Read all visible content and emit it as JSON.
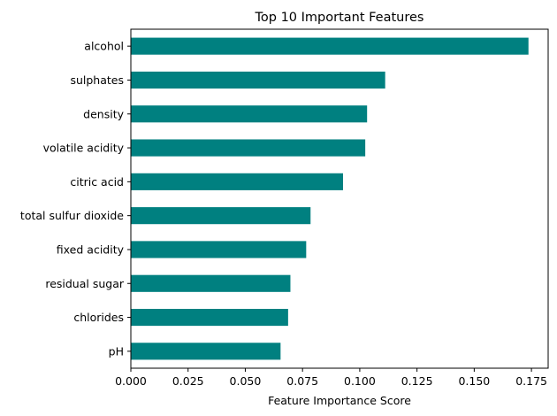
{
  "chart_data": {
    "type": "bar",
    "orientation": "horizontal",
    "title": "Top 10 Important Features",
    "xlabel": "Feature Importance Score",
    "ylabel": "",
    "xlim": [
      0,
      0.1823
    ],
    "x_ticks": [
      "0.000",
      "0.025",
      "0.050",
      "0.075",
      "0.100",
      "0.125",
      "0.150",
      "0.175"
    ],
    "x_tick_values": [
      0,
      0.025,
      0.05,
      0.075,
      0.1,
      0.125,
      0.15,
      0.175
    ],
    "categories": [
      "alcohol",
      "sulphates",
      "density",
      "volatile acidity",
      "citric acid",
      "total sulfur dioxide",
      "fixed acidity",
      "residual sugar",
      "chlorides",
      "pH"
    ],
    "values": [
      0.1737,
      0.1111,
      0.1032,
      0.1024,
      0.0927,
      0.0785,
      0.0766,
      0.0697,
      0.0687,
      0.0654
    ],
    "bar_color": "#008080",
    "grid": false,
    "legend": "none"
  }
}
